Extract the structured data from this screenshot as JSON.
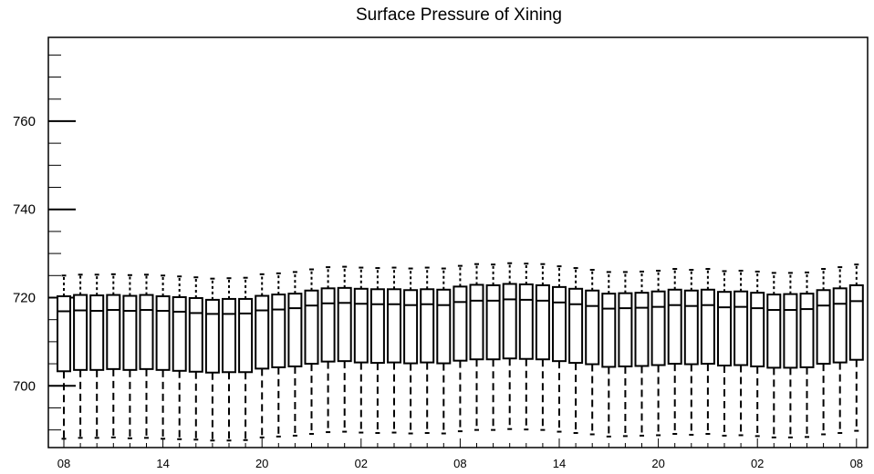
{
  "chart_data": {
    "type": "box",
    "title": "Surface Pressure of Xining",
    "xlabel": "",
    "ylabel": "",
    "ylim": [
      686,
      779
    ],
    "y_ticks": [
      700,
      720,
      740,
      760
    ],
    "y_minor_step": 5,
    "x_tick_labels": [
      "08",
      "14",
      "20",
      "02",
      "08",
      "14",
      "20",
      "02",
      "08"
    ],
    "x_tick_steps": [
      0,
      6,
      12,
      18,
      24,
      30,
      36,
      42,
      48
    ],
    "grid": false,
    "boxes": [
      {
        "step": 0,
        "low": 688.0,
        "q1": 703.3,
        "median": 716.9,
        "q3": 720.3,
        "high": 725.0
      },
      {
        "step": 1,
        "low": 688.2,
        "q1": 703.6,
        "median": 717.1,
        "q3": 720.6,
        "high": 725.2
      },
      {
        "step": 2,
        "low": 688.2,
        "q1": 703.6,
        "median": 717.0,
        "q3": 720.5,
        "high": 725.2
      },
      {
        "step": 3,
        "low": 688.3,
        "q1": 703.8,
        "median": 717.2,
        "q3": 720.6,
        "high": 725.3
      },
      {
        "step": 4,
        "low": 688.1,
        "q1": 703.6,
        "median": 717.0,
        "q3": 720.4,
        "high": 725.1
      },
      {
        "step": 5,
        "low": 688.2,
        "q1": 703.8,
        "median": 717.2,
        "q3": 720.6,
        "high": 725.2
      },
      {
        "step": 6,
        "low": 688.0,
        "q1": 703.6,
        "median": 717.0,
        "q3": 720.3,
        "high": 725.0
      },
      {
        "step": 7,
        "low": 687.9,
        "q1": 703.4,
        "median": 716.8,
        "q3": 720.1,
        "high": 724.8
      },
      {
        "step": 8,
        "low": 687.8,
        "q1": 703.2,
        "median": 716.5,
        "q3": 719.9,
        "high": 724.6
      },
      {
        "step": 9,
        "low": 687.6,
        "q1": 703.0,
        "median": 716.3,
        "q3": 719.5,
        "high": 724.3
      },
      {
        "step": 10,
        "low": 687.6,
        "q1": 703.1,
        "median": 716.3,
        "q3": 719.7,
        "high": 724.4
      },
      {
        "step": 11,
        "low": 687.7,
        "q1": 703.1,
        "median": 716.4,
        "q3": 719.7,
        "high": 724.5
      },
      {
        "step": 12,
        "low": 688.3,
        "q1": 703.9,
        "median": 717.1,
        "q3": 720.4,
        "high": 725.3
      },
      {
        "step": 13,
        "low": 688.5,
        "q1": 704.2,
        "median": 717.3,
        "q3": 720.7,
        "high": 725.5
      },
      {
        "step": 14,
        "low": 688.7,
        "q1": 704.4,
        "median": 717.6,
        "q3": 720.9,
        "high": 725.8
      },
      {
        "step": 15,
        "low": 689.1,
        "q1": 705.0,
        "median": 718.2,
        "q3": 721.6,
        "high": 726.4
      },
      {
        "step": 16,
        "low": 689.5,
        "q1": 705.5,
        "median": 718.7,
        "q3": 722.1,
        "high": 726.9
      },
      {
        "step": 17,
        "low": 689.6,
        "q1": 705.6,
        "median": 718.8,
        "q3": 722.2,
        "high": 727.0
      },
      {
        "step": 18,
        "low": 689.4,
        "q1": 705.3,
        "median": 718.6,
        "q3": 722.0,
        "high": 726.8
      },
      {
        "step": 19,
        "low": 689.3,
        "q1": 705.2,
        "median": 718.5,
        "q3": 721.9,
        "high": 726.7
      },
      {
        "step": 20,
        "low": 689.4,
        "q1": 705.3,
        "median": 718.5,
        "q3": 721.9,
        "high": 726.8
      },
      {
        "step": 21,
        "low": 689.2,
        "q1": 705.1,
        "median": 718.3,
        "q3": 721.7,
        "high": 726.6
      },
      {
        "step": 22,
        "low": 689.3,
        "q1": 705.3,
        "median": 718.5,
        "q3": 721.9,
        "high": 726.8
      },
      {
        "step": 23,
        "low": 689.2,
        "q1": 705.1,
        "median": 718.3,
        "q3": 721.8,
        "high": 726.6
      },
      {
        "step": 24,
        "low": 689.7,
        "q1": 705.7,
        "median": 719.0,
        "q3": 722.5,
        "high": 727.2
      },
      {
        "step": 25,
        "low": 690.0,
        "q1": 706.0,
        "median": 719.3,
        "q3": 722.9,
        "high": 727.6
      },
      {
        "step": 26,
        "low": 690.0,
        "q1": 706.0,
        "median": 719.3,
        "q3": 722.8,
        "high": 727.5
      },
      {
        "step": 27,
        "low": 690.2,
        "q1": 706.2,
        "median": 719.6,
        "q3": 723.1,
        "high": 727.8
      },
      {
        "step": 28,
        "low": 690.1,
        "q1": 706.1,
        "median": 719.5,
        "q3": 723.0,
        "high": 727.7
      },
      {
        "step": 29,
        "low": 690.0,
        "q1": 706.0,
        "median": 719.3,
        "q3": 722.8,
        "high": 727.6
      },
      {
        "step": 30,
        "low": 689.6,
        "q1": 705.6,
        "median": 718.9,
        "q3": 722.4,
        "high": 727.1
      },
      {
        "step": 31,
        "low": 689.3,
        "q1": 705.2,
        "median": 718.5,
        "q3": 722.0,
        "high": 726.7
      },
      {
        "step": 32,
        "low": 689.0,
        "q1": 704.9,
        "median": 718.1,
        "q3": 721.6,
        "high": 726.3
      },
      {
        "step": 33,
        "low": 688.5,
        "q1": 704.3,
        "median": 717.5,
        "q3": 720.9,
        "high": 725.8
      },
      {
        "step": 34,
        "low": 688.6,
        "q1": 704.4,
        "median": 717.6,
        "q3": 721.0,
        "high": 725.8
      },
      {
        "step": 35,
        "low": 688.7,
        "q1": 704.5,
        "median": 717.7,
        "q3": 721.1,
        "high": 725.9
      },
      {
        "step": 36,
        "low": 688.8,
        "q1": 704.7,
        "median": 717.9,
        "q3": 721.4,
        "high": 726.1
      },
      {
        "step": 37,
        "low": 689.1,
        "q1": 705.0,
        "median": 718.3,
        "q3": 721.8,
        "high": 726.5
      },
      {
        "step": 38,
        "low": 688.9,
        "q1": 704.9,
        "median": 718.1,
        "q3": 721.6,
        "high": 726.3
      },
      {
        "step": 39,
        "low": 689.1,
        "q1": 705.0,
        "median": 718.3,
        "q3": 721.8,
        "high": 726.5
      },
      {
        "step": 40,
        "low": 688.7,
        "q1": 704.6,
        "median": 717.8,
        "q3": 721.3,
        "high": 726.0
      },
      {
        "step": 41,
        "low": 688.8,
        "q1": 704.7,
        "median": 717.9,
        "q3": 721.4,
        "high": 726.1
      },
      {
        "step": 42,
        "low": 688.6,
        "q1": 704.4,
        "median": 717.6,
        "q3": 721.1,
        "high": 725.9
      },
      {
        "step": 43,
        "low": 688.3,
        "q1": 704.1,
        "median": 717.2,
        "q3": 720.7,
        "high": 725.6
      },
      {
        "step": 44,
        "low": 688.3,
        "q1": 704.1,
        "median": 717.2,
        "q3": 720.8,
        "high": 725.6
      },
      {
        "step": 45,
        "low": 688.4,
        "q1": 704.2,
        "median": 717.4,
        "q3": 720.9,
        "high": 725.7
      },
      {
        "step": 46,
        "low": 689.0,
        "q1": 705.0,
        "median": 718.2,
        "q3": 721.7,
        "high": 726.5
      },
      {
        "step": 47,
        "low": 689.3,
        "q1": 705.3,
        "median": 718.6,
        "q3": 722.1,
        "high": 726.9
      },
      {
        "step": 48,
        "low": 689.8,
        "q1": 705.9,
        "median": 719.2,
        "q3": 722.8,
        "high": 727.5
      }
    ]
  }
}
